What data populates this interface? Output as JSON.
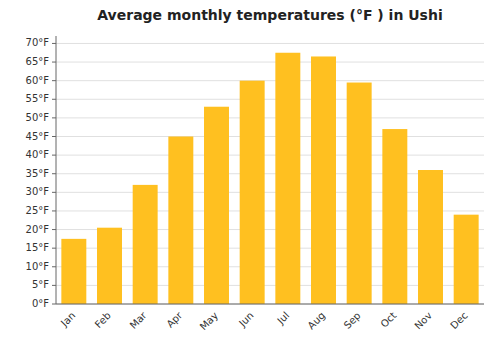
{
  "chart_data": {
    "type": "bar",
    "title": "Average monthly temperatures (°F ) in Ushi",
    "categories": [
      "Jan",
      "Feb",
      "Mar",
      "Apr",
      "May",
      "Jun",
      "Jul",
      "Aug",
      "Sep",
      "Oct",
      "Nov",
      "Dec"
    ],
    "values": [
      17.5,
      20.5,
      32,
      45,
      53,
      60,
      67.5,
      66.5,
      59.5,
      47,
      36,
      24
    ],
    "color": "#FFC020",
    "ylim": [
      0,
      72
    ],
    "yticks": [
      {
        "value": 0,
        "label": "0°F"
      },
      {
        "value": 5,
        "label": "5°F"
      },
      {
        "value": 10,
        "label": "10°F"
      },
      {
        "value": 15,
        "label": "15°F"
      },
      {
        "value": 20,
        "label": "20°F"
      },
      {
        "value": 25,
        "label": "25°F"
      },
      {
        "value": 30,
        "label": "30°F"
      },
      {
        "value": 35,
        "label": "35°F"
      },
      {
        "value": 40,
        "label": "40°F"
      },
      {
        "value": 45,
        "label": "45°F"
      },
      {
        "value": 50,
        "label": "50°F"
      },
      {
        "value": 55,
        "label": "55°F"
      },
      {
        "value": 60,
        "label": "60°F"
      },
      {
        "value": 65,
        "label": "65°F"
      },
      {
        "value": 70,
        "label": "70°F"
      }
    ],
    "grid": true
  }
}
